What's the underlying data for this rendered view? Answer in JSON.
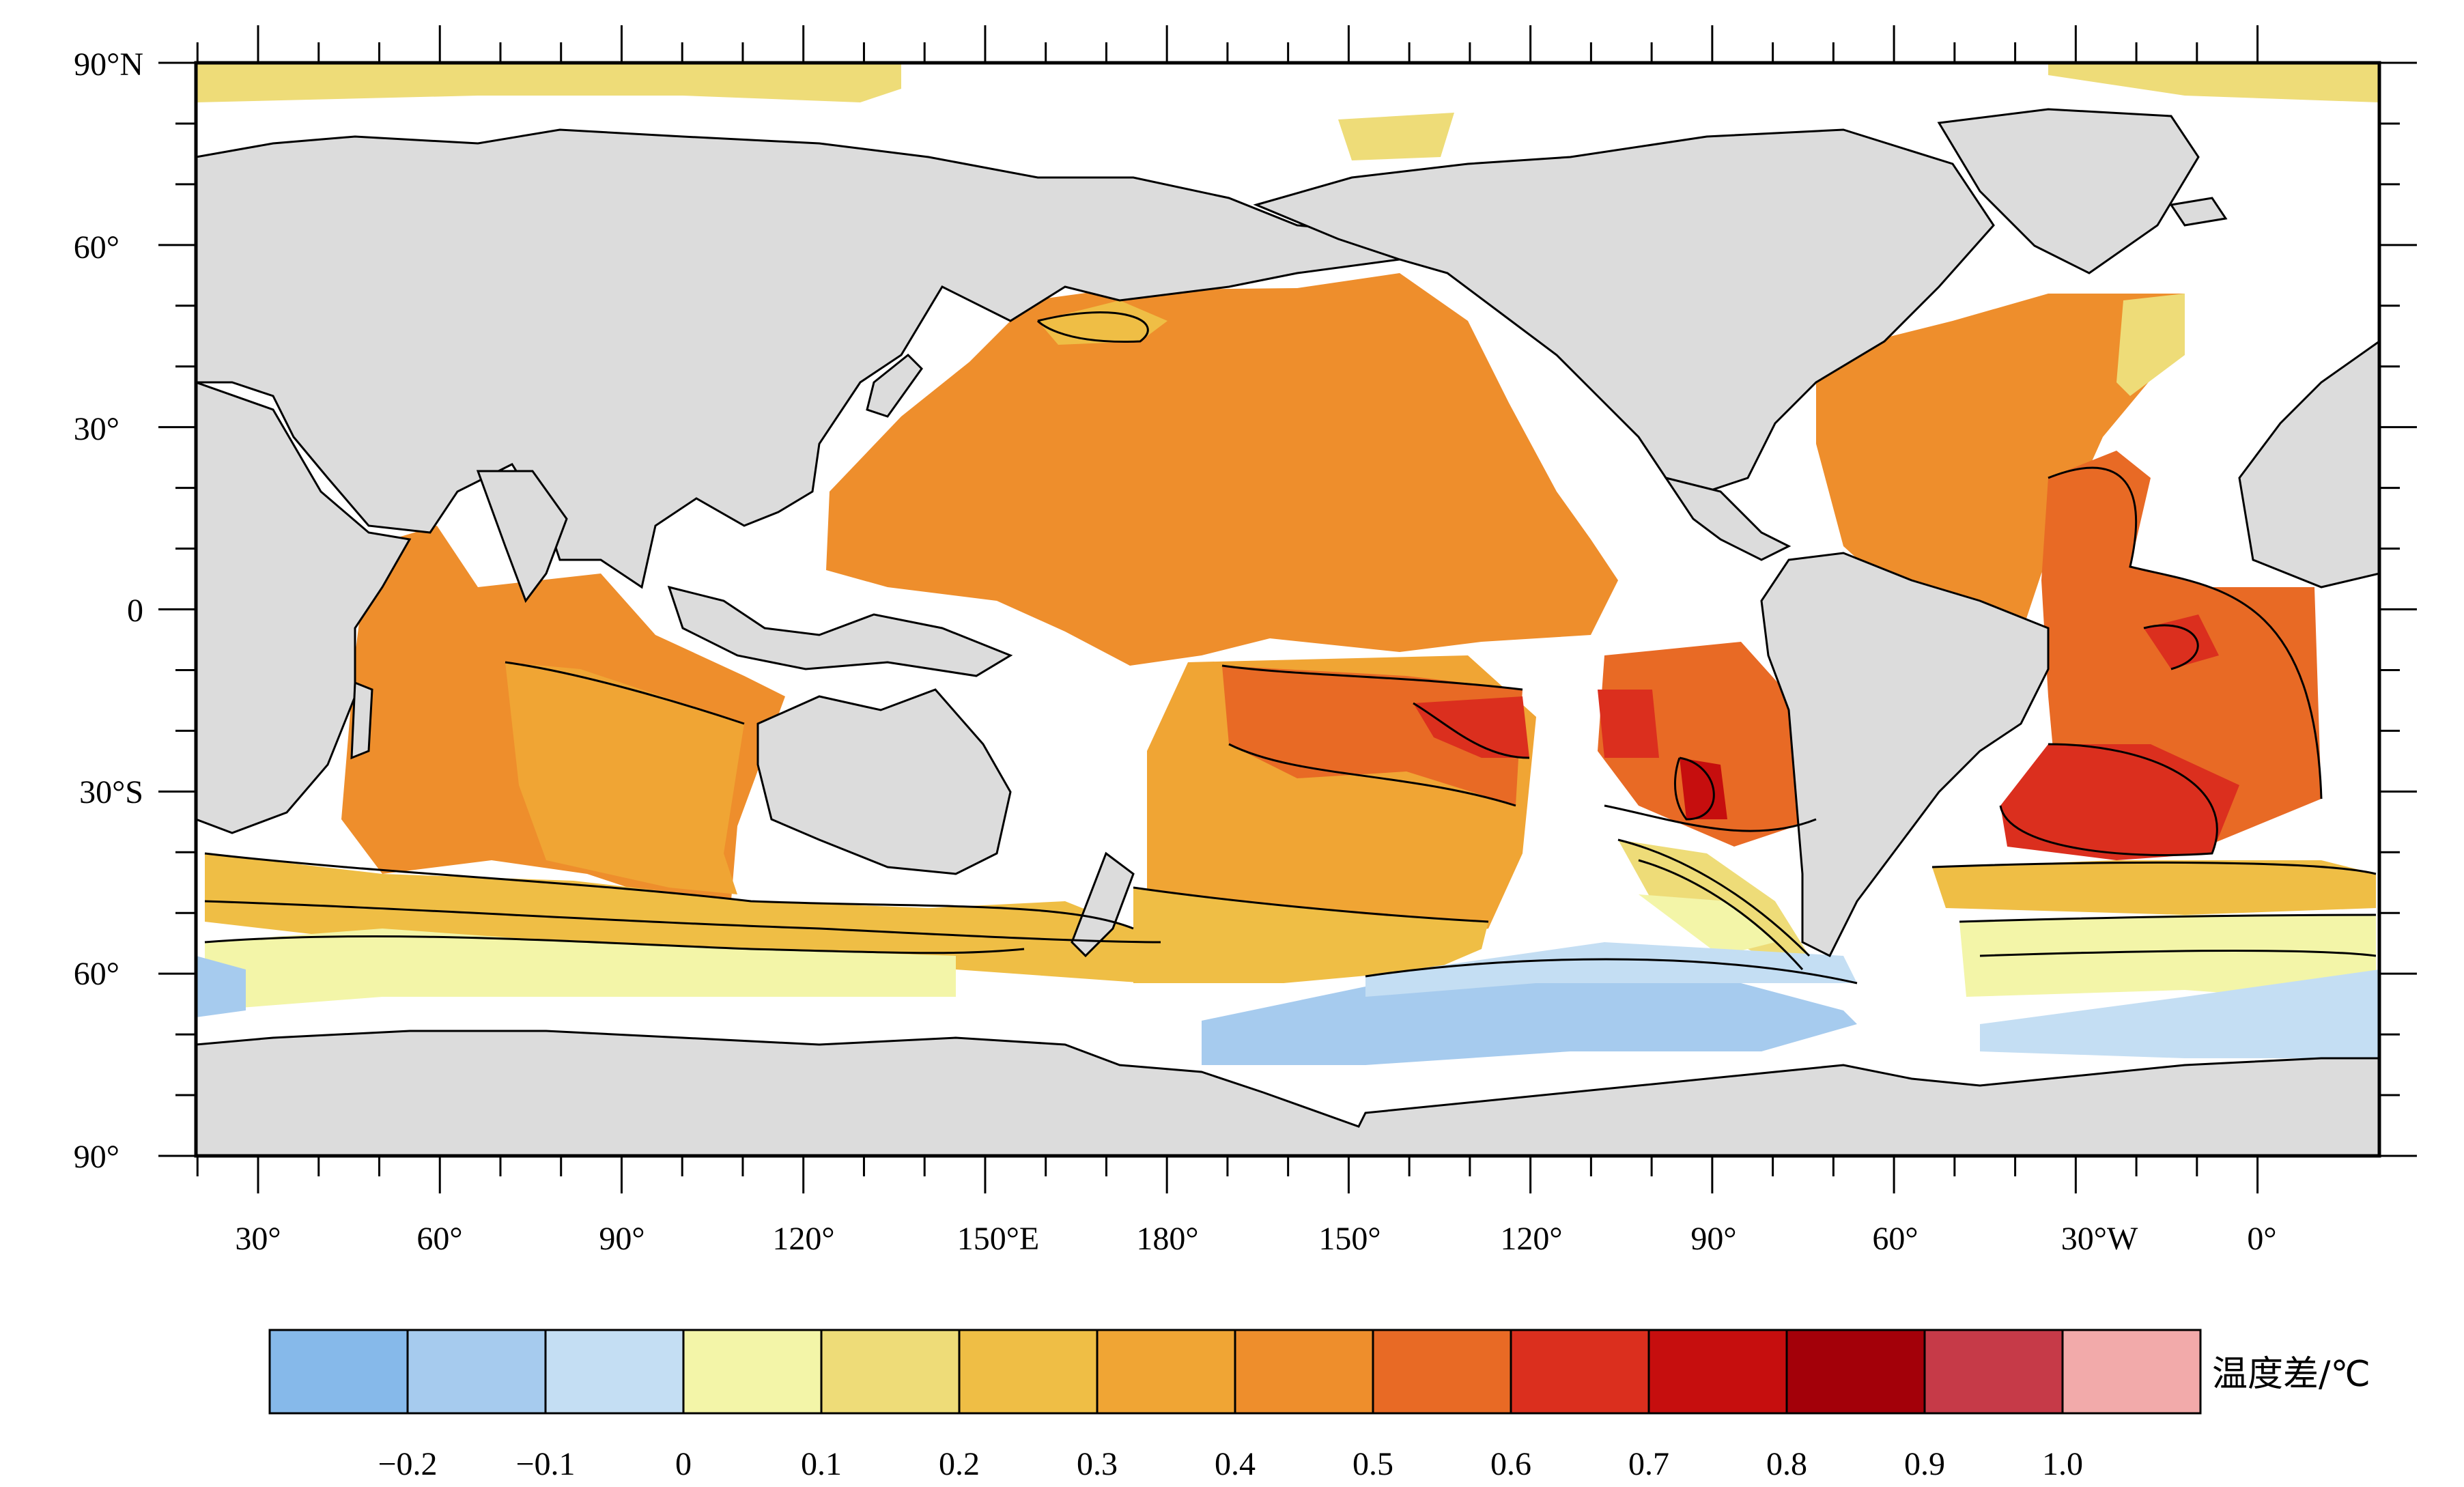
{
  "map": {
    "lat_labels": [
      "90°N",
      "60°",
      "30°",
      "0",
      "30°S",
      "60°",
      "90°"
    ],
    "lon_labels": [
      "30°",
      "60°",
      "90°",
      "120°",
      "150°E",
      "180°",
      "150°",
      "120°",
      "90°",
      "60°",
      "30°W",
      "0°"
    ],
    "land_color": "#dcdcdc",
    "missing_color": "#ffffff",
    "coastline_color": "#000000"
  },
  "colorbar": {
    "title": "温度差/℃",
    "tick_labels": [
      "-0.2",
      "-0.1",
      "0",
      "0.1",
      "0.2",
      "0.3",
      "0.4",
      "0.5",
      "0.6",
      "0.7",
      "0.8",
      "0.9",
      "1.0"
    ],
    "colors": [
      "#86b9ea",
      "#a6cbee",
      "#c4def3",
      "#f3f5a8",
      "#eedc78",
      "#efbe45",
      "#f0a534",
      "#ee8e2c",
      "#e86a25",
      "#db2f1e",
      "#c60e0e",
      "#a30009",
      "#c63a48",
      "#f2aaaa"
    ]
  }
}
